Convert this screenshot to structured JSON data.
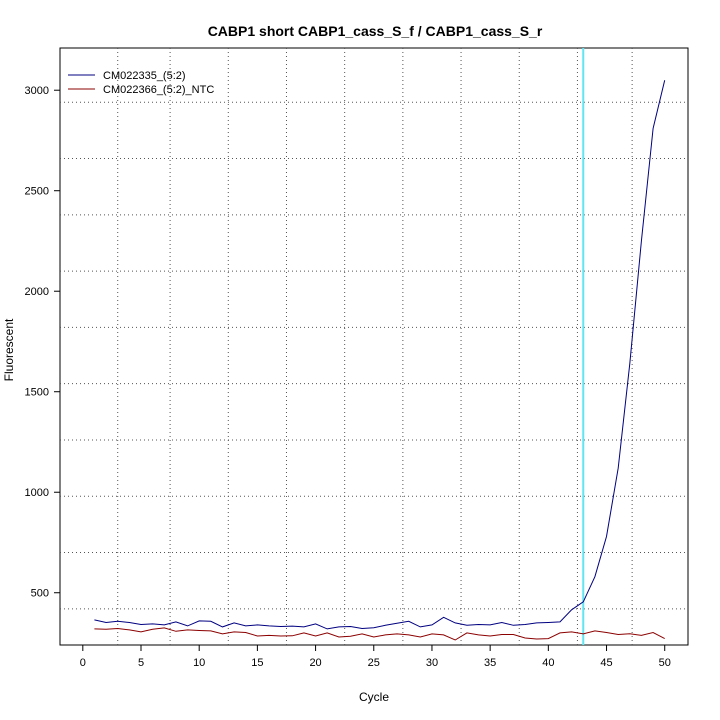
{
  "chart_data": {
    "type": "line",
    "title": "CABP1 short CABP1_cass_S_f / CABP1_cass_S_r",
    "xlabel": "Cycle",
    "ylabel": "Fluorescent",
    "xlim": [
      -1.96,
      52
    ],
    "ylim": [
      240,
      3210
    ],
    "x_ticks": [
      0,
      5,
      10,
      15,
      20,
      25,
      30,
      35,
      40,
      45,
      50
    ],
    "y_ticks": [
      500,
      1000,
      1500,
      2000,
      2500,
      3000
    ],
    "grid": true,
    "grid_style": "dotted",
    "grid_x": [
      3,
      7.5,
      12.5,
      17.5,
      22.5,
      27.5,
      32.5,
      37.5,
      42.5,
      47.2
    ],
    "grid_y": [
      420,
      700,
      980,
      1260,
      1540,
      1820,
      2100,
      2380,
      2660,
      2940
    ],
    "threshold_line": {
      "x": 43,
      "color": "#5fe6f0"
    },
    "legend": "top-left",
    "series": [
      {
        "name": "CM022335_(5:2)",
        "color": "#000080",
        "x": [
          1,
          2,
          3,
          4,
          5,
          6,
          7,
          8,
          9,
          10,
          11,
          12,
          13,
          14,
          15,
          16,
          17,
          18,
          19,
          20,
          21,
          22,
          23,
          24,
          25,
          26,
          27,
          28,
          29,
          30,
          31,
          32,
          33,
          34,
          35,
          36,
          37,
          38,
          39,
          40,
          41,
          42,
          43,
          44,
          45,
          46,
          47,
          48,
          49,
          50
        ],
        "values": [
          365,
          352,
          358,
          352,
          342,
          345,
          340,
          355,
          335,
          360,
          358,
          330,
          350,
          335,
          340,
          335,
          332,
          334,
          330,
          345,
          320,
          330,
          332,
          322,
          326,
          338,
          348,
          358,
          330,
          340,
          378,
          350,
          338,
          342,
          340,
          352,
          338,
          342,
          350,
          352,
          355,
          415,
          455,
          580,
          780,
          1120,
          1640,
          2250,
          2810,
          3050
        ]
      },
      {
        "name": "CM022366_(5:2)_NTC",
        "color": "#8b0000",
        "x": [
          1,
          2,
          3,
          4,
          5,
          6,
          7,
          8,
          9,
          10,
          11,
          12,
          13,
          14,
          15,
          16,
          17,
          18,
          19,
          20,
          21,
          22,
          23,
          24,
          25,
          26,
          27,
          28,
          29,
          30,
          31,
          32,
          33,
          34,
          35,
          36,
          37,
          38,
          39,
          40,
          41,
          42,
          43,
          44,
          45,
          46,
          47,
          48,
          49,
          50
        ],
        "values": [
          320,
          318,
          322,
          315,
          305,
          318,
          325,
          308,
          315,
          312,
          310,
          295,
          305,
          302,
          285,
          288,
          285,
          286,
          300,
          285,
          300,
          280,
          284,
          295,
          280,
          290,
          295,
          290,
          280,
          295,
          290,
          265,
          300,
          290,
          285,
          292,
          292,
          275,
          270,
          272,
          300,
          305,
          295,
          310,
          302,
          292,
          296,
          288,
          302,
          272
        ]
      }
    ]
  }
}
